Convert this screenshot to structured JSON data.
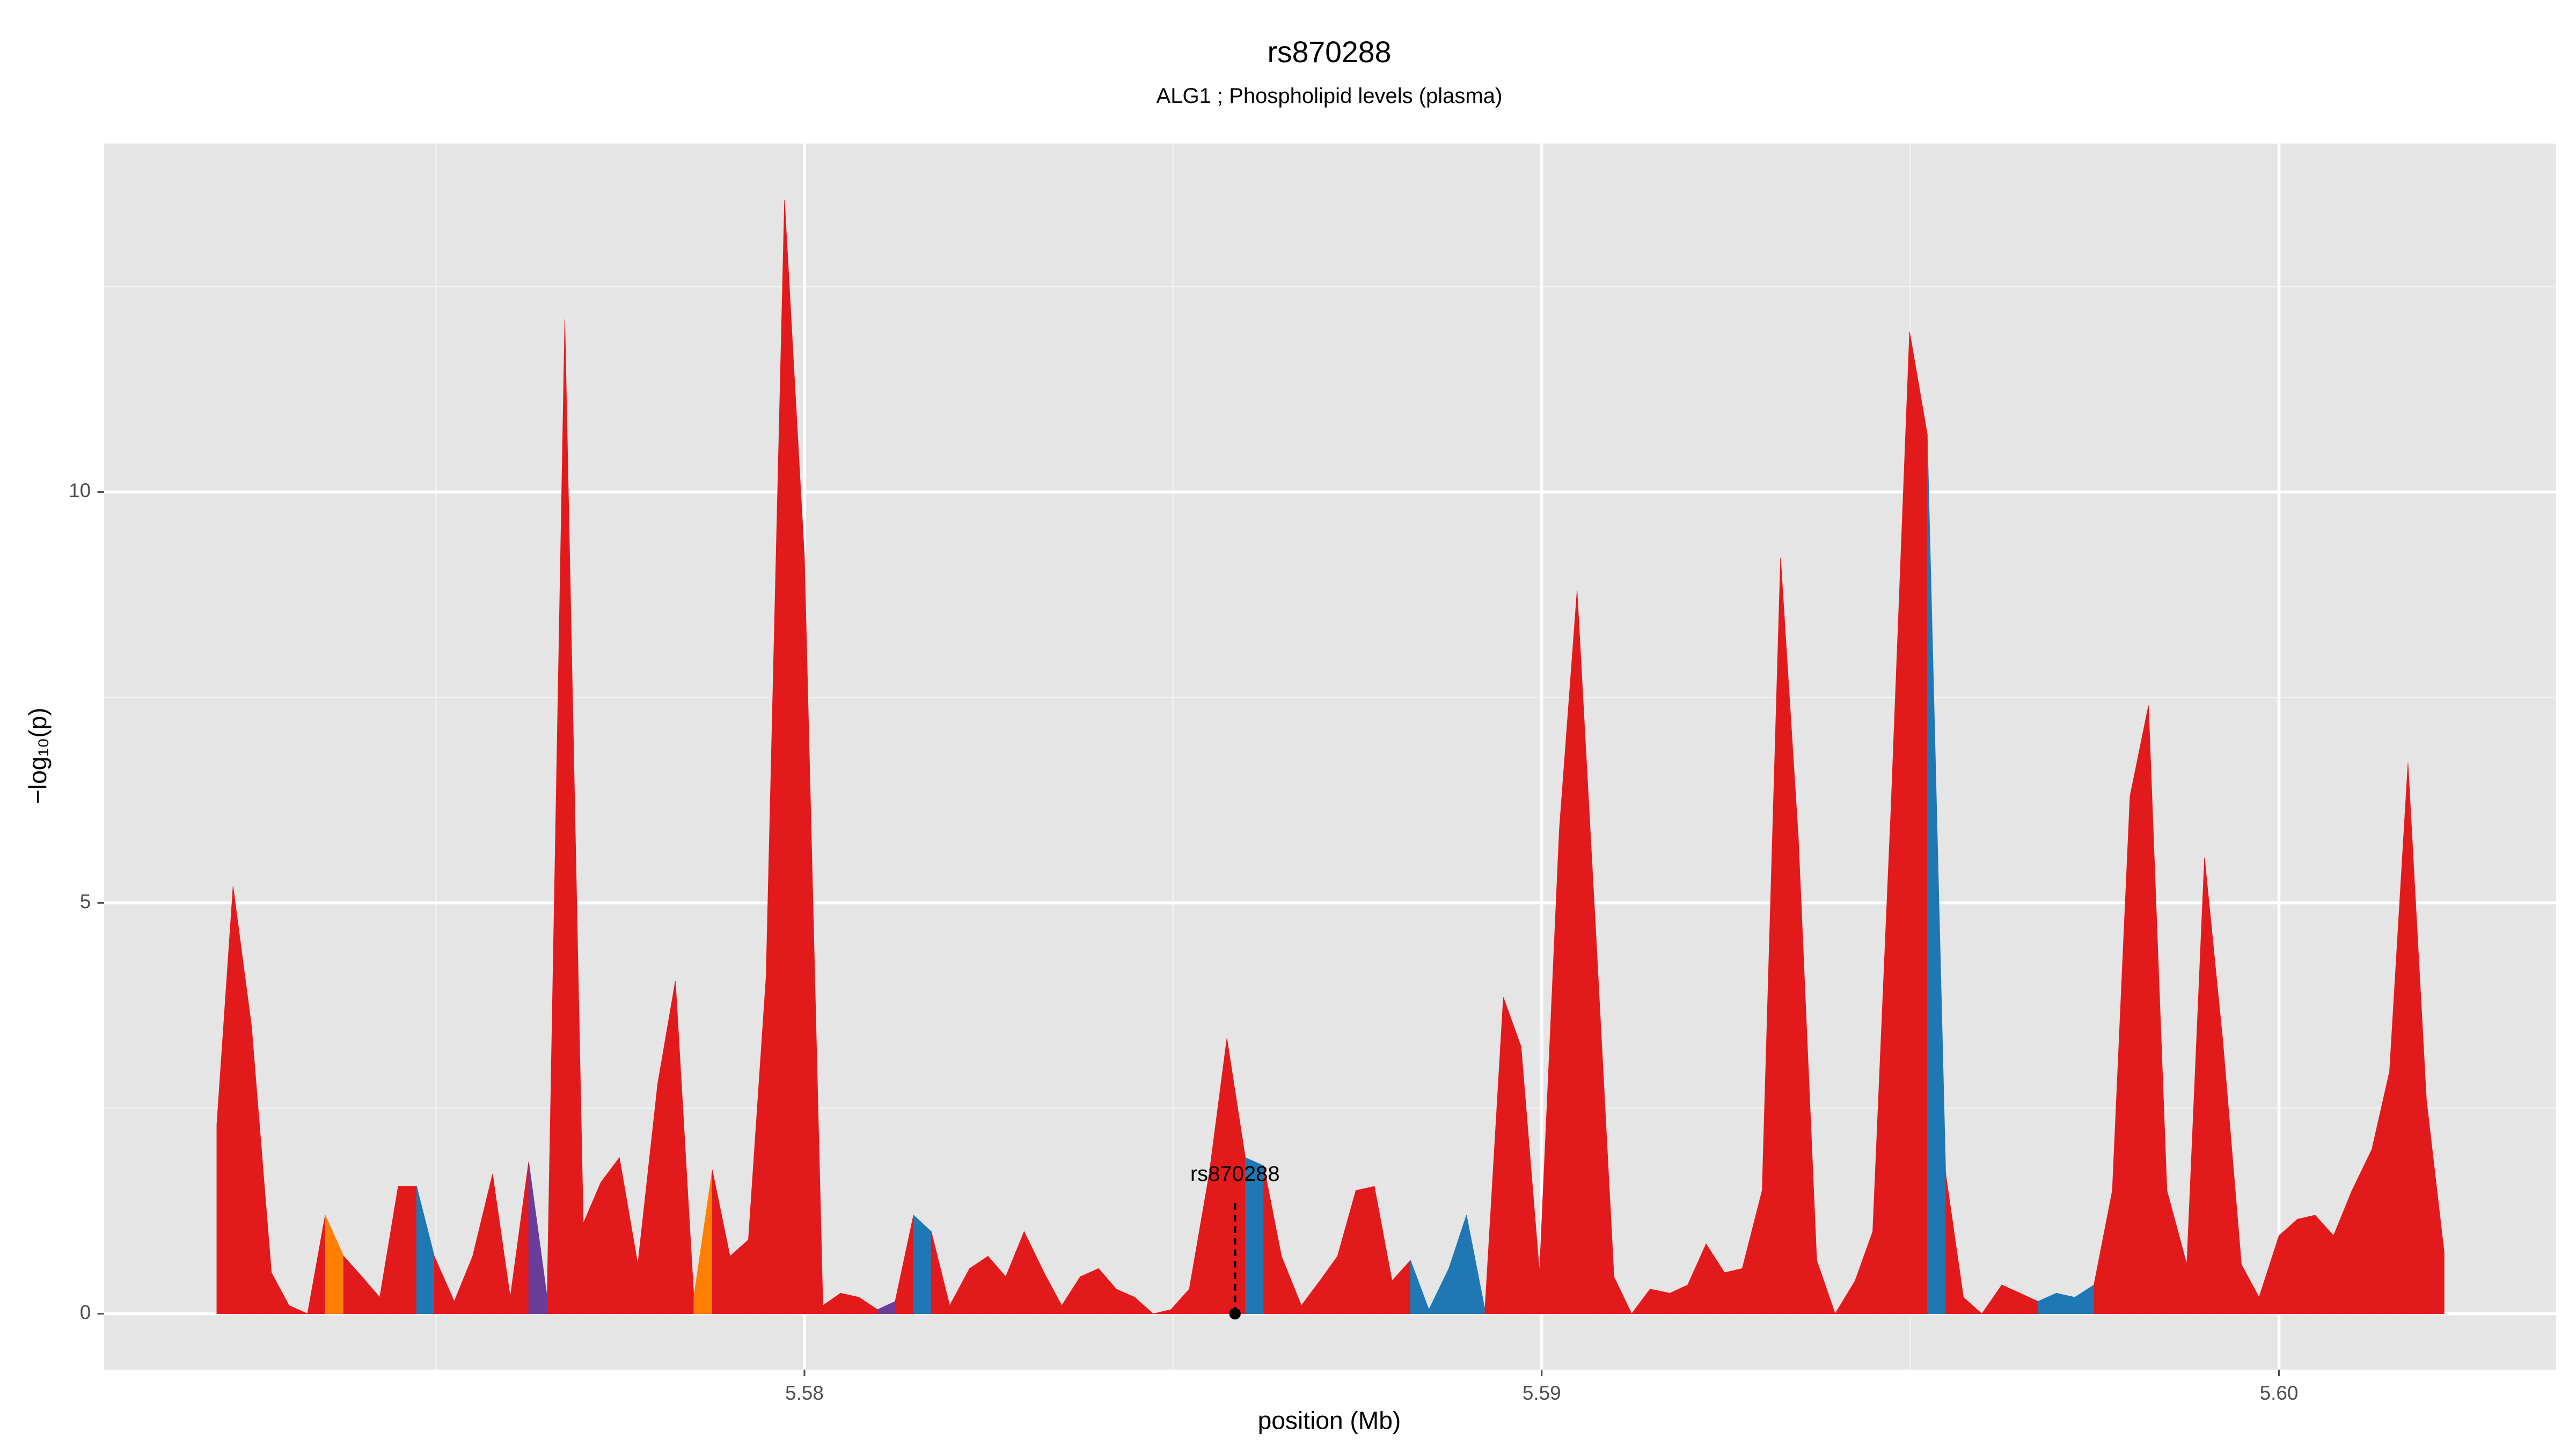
{
  "chart_data": {
    "type": "area",
    "title": "rs870288",
    "subtitle": "ALG1 ; Phospholipid levels (plasma)",
    "x_label": "position (Mb)",
    "y_label": "−log₁₀(p)",
    "xlim": [
      5.5705,
      5.60376
    ],
    "ylim": [
      -0.68,
      14.24
    ],
    "xticks": [
      {
        "value": 5.58,
        "label": "5.58"
      },
      {
        "value": 5.59,
        "label": "5.59"
      },
      {
        "value": 5.6,
        "label": "5.60"
      }
    ],
    "yticks": [
      0,
      5,
      10
    ],
    "xminor": [
      5.575,
      5.585,
      5.595
    ],
    "yminor": [
      2.5,
      7.5,
      12.5
    ],
    "grid": true,
    "background": "#e5e5e5",
    "series": [
      {
        "x": [
          5.57203,
          5.57225,
          5.5725,
          5.57277,
          5.57301,
          5.57326,
          5.5735,
          5.57375,
          5.574,
          5.57424,
          5.57449,
          5.57474,
          5.57498,
          5.57525,
          5.5755,
          5.57577,
          5.57601,
          5.57626,
          5.57651,
          5.57675,
          5.577,
          5.57724,
          5.57749,
          5.57774,
          5.57801,
          5.57825,
          5.5785,
          5.57875,
          5.57899,
          5.57924,
          5.57948,
          5.57973,
          5.58,
          5.58025,
          5.58049,
          5.58074,
          5.58099,
          5.58123,
          5.58148,
          5.58172,
          5.58197,
          5.58224,
          5.58249,
          5.58273,
          5.58298,
          5.58325,
          5.58349,
          5.58374,
          5.58399,
          5.58423,
          5.58448,
          5.58473,
          5.58497,
          5.58522,
          5.58549,
          5.58573,
          5.58598,
          5.58623,
          5.58647,
          5.58674,
          5.58699,
          5.58723,
          5.58748,
          5.58773,
          5.58797,
          5.58822,
          5.58847,
          5.58874,
          5.58898,
          5.58923,
          5.58948,
          5.58972,
          5.58997,
          5.59024,
          5.59048,
          5.59073,
          5.59098,
          5.59122,
          5.59147,
          5.59174,
          5.59198,
          5.59223,
          5.59248,
          5.59272,
          5.59299,
          5.59324,
          5.59348,
          5.59373,
          5.59398,
          5.59425,
          5.59449,
          5.59474,
          5.59499,
          5.59523,
          5.59548,
          5.59572,
          5.59597,
          5.59624,
          5.59649,
          5.59673,
          5.59698,
          5.59723,
          5.59749,
          5.59774,
          5.59798,
          5.59823,
          5.59848,
          5.59875,
          5.59899,
          5.59924,
          5.59949,
          5.59973,
          5.6,
          5.60025,
          5.60049,
          5.60074,
          5.60099,
          5.60126,
          5.6015,
          5.60175,
          5.602,
          5.60224
        ],
        "values": [
          2.3,
          5.2,
          3.5,
          0.5,
          0.1,
          0,
          1.2,
          0.7,
          0.45,
          0.2,
          1.55,
          1.55,
          0.7,
          0.15,
          0.7,
          1.7,
          0.2,
          1.85,
          0.2,
          12.1,
          1.1,
          1.6,
          1.9,
          0.6,
          2.8,
          4.05,
          0.2,
          1.75,
          0.7,
          0.9,
          4.1,
          13.55,
          9.2,
          0.1,
          0.25,
          0.2,
          0.05,
          0.15,
          1.2,
          1.0,
          0.1,
          0.55,
          0.7,
          0.45,
          1.0,
          0.5,
          0.1,
          0.45,
          0.55,
          0.3,
          0.2,
          0,
          0.05,
          0.3,
          1.7,
          3.35,
          1.9,
          1.8,
          0.7,
          0.1,
          0.4,
          0.7,
          1.5,
          1.55,
          0.4,
          0.65,
          0.05,
          0.55,
          1.2,
          0.05,
          3.85,
          3.25,
          0.5,
          5.9,
          8.8,
          4.7,
          0.45,
          0,
          0.3,
          0.25,
          0.35,
          0.85,
          0.5,
          0.55,
          1.5,
          9.2,
          5.8,
          0.65,
          0,
          0.4,
          1.0,
          6.2,
          11.95,
          10.7,
          1.7,
          0.2,
          0,
          0.35,
          0.25,
          0.15,
          0.25,
          0.2,
          0.35,
          1.5,
          6.3,
          7.4,
          1.5,
          0.6,
          5.55,
          3.3,
          0.6,
          0.2,
          0.95,
          1.15,
          1.2,
          0.95,
          1.5,
          2.0,
          2.95,
          6.7,
          2.6,
          0.75
        ],
        "colors": [
          "#e31a1c",
          "#e31a1c",
          "#e31a1c",
          "#e31a1c",
          "#e31a1c",
          "#e31a1c",
          "#e31a1c",
          "#ff7f00",
          "#e31a1c",
          "#e31a1c",
          "#e31a1c",
          "#e31a1c",
          "#1f78b4",
          "#e31a1c",
          "#e31a1c",
          "#e31a1c",
          "#e31a1c",
          "#e31a1c",
          "#6a3d9a",
          "#e31a1c",
          "#e31a1c",
          "#e31a1c",
          "#e31a1c",
          "#e31a1c",
          "#e31a1c",
          "#e31a1c",
          "#e31a1c",
          "#ff7f00",
          "#e31a1c",
          "#e31a1c",
          "#e31a1c",
          "#e31a1c",
          "#e31a1c",
          "#e31a1c",
          "#e31a1c",
          "#e31a1c",
          "#e31a1c",
          "#6a3d9a",
          "#e31a1c",
          "#1f78b4",
          "#e31a1c",
          "#e31a1c",
          "#e31a1c",
          "#e31a1c",
          "#e31a1c",
          "#e31a1c",
          "#e31a1c",
          "#e31a1c",
          "#e31a1c",
          "#e31a1c",
          "#e31a1c",
          "#e31a1c",
          "#e31a1c",
          "#e31a1c",
          "#e31a1c",
          "#e31a1c",
          "#e31a1c",
          "#1f78b4",
          "#e31a1c",
          "#e31a1c",
          "#e31a1c",
          "#e31a1c",
          "#e31a1c",
          "#e31a1c",
          "#e31a1c",
          "#e31a1c",
          "#1f78b4",
          "#1f78b4",
          "#1f78b4",
          "#1f78b4",
          "#e31a1c",
          "#e31a1c",
          "#e31a1c",
          "#e31a1c",
          "#e31a1c",
          "#e31a1c",
          "#e31a1c",
          "#e31a1c",
          "#e31a1c",
          "#e31a1c",
          "#e31a1c",
          "#e31a1c",
          "#e31a1c",
          "#e31a1c",
          "#e31a1c",
          "#e31a1c",
          "#e31a1c",
          "#e31a1c",
          "#e31a1c",
          "#e31a1c",
          "#e31a1c",
          "#e31a1c",
          "#e31a1c",
          "#e31a1c",
          "#1f78b4",
          "#e31a1c",
          "#e31a1c",
          "#e31a1c",
          "#e31a1c",
          "#e31a1c",
          "#1f78b4",
          "#1f78b4",
          "#1f78b4",
          "#e31a1c",
          "#e31a1c",
          "#e31a1c",
          "#e31a1c",
          "#e31a1c",
          "#e31a1c",
          "#e31a1c",
          "#e31a1c",
          "#e31a1c",
          "#e31a1c",
          "#e31a1c",
          "#e31a1c",
          "#e31a1c",
          "#e31a1c",
          "#e31a1c",
          "#e31a1c",
          "#e31a1c",
          "#e31a1c",
          "#e31a1c"
        ]
      }
    ],
    "annotation": {
      "label": "rs870288",
      "x": 5.58584,
      "y": 0
    }
  }
}
